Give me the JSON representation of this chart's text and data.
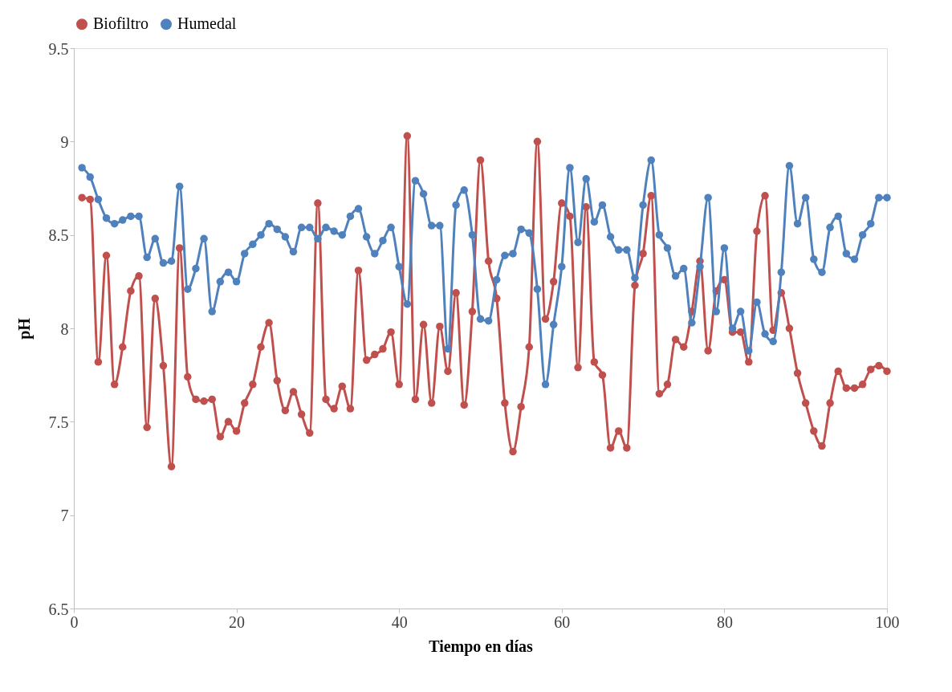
{
  "chart_data": {
    "type": "line",
    "xlabel": "Tiempo en días",
    "ylabel": "pH",
    "x": [
      1,
      2,
      3,
      4,
      5,
      6,
      7,
      8,
      9,
      10,
      11,
      12,
      13,
      14,
      15,
      16,
      17,
      18,
      19,
      20,
      21,
      22,
      23,
      24,
      25,
      26,
      27,
      28,
      29,
      30,
      31,
      32,
      33,
      34,
      35,
      36,
      37,
      38,
      39,
      40,
      41,
      42,
      43,
      44,
      45,
      46,
      47,
      48,
      49,
      50,
      51,
      52,
      53,
      54,
      55,
      56,
      57,
      58,
      59,
      60,
      61,
      62,
      63,
      64,
      65,
      66,
      67,
      68,
      69,
      70,
      71,
      72,
      73,
      74,
      75,
      76,
      77,
      78,
      79,
      80,
      81,
      82,
      83,
      84,
      85,
      86,
      87,
      88,
      89,
      90,
      91,
      92,
      93,
      94,
      95,
      96,
      97,
      98,
      99,
      100
    ],
    "series": [
      {
        "name": "Biofiltro",
        "color": "#c0504d",
        "values": [
          8.7,
          8.69,
          7.82,
          8.39,
          7.7,
          7.9,
          8.2,
          8.28,
          7.47,
          8.16,
          7.8,
          7.26,
          8.43,
          7.74,
          7.62,
          7.61,
          7.62,
          7.42,
          7.5,
          7.45,
          7.6,
          7.7,
          7.9,
          8.03,
          7.72,
          7.56,
          7.66,
          7.54,
          7.44,
          8.67,
          7.62,
          7.57,
          7.69,
          7.57,
          8.31,
          7.83,
          7.86,
          7.89,
          7.98,
          7.7,
          9.03,
          7.62,
          8.02,
          7.6,
          8.01,
          7.77,
          8.19,
          7.59,
          8.09,
          8.9,
          8.36,
          8.16,
          7.6,
          7.34,
          7.58,
          7.9,
          9.0,
          8.05,
          8.25,
          8.67,
          8.6,
          7.79,
          8.65,
          7.82,
          7.75,
          7.36,
          7.45,
          7.36,
          8.23,
          8.4,
          8.71,
          7.65,
          7.7,
          7.94,
          7.9,
          8.09,
          8.36,
          7.88,
          8.2,
          8.26,
          7.98,
          7.98,
          7.82,
          8.52,
          8.71,
          7.99,
          8.19,
          8.0,
          7.76,
          7.6,
          7.45,
          7.37,
          7.6,
          7.77,
          7.68,
          7.68,
          7.7,
          7.78,
          7.8,
          7.77
        ]
      },
      {
        "name": "Humedal",
        "color": "#4f81bd",
        "values": [
          8.86,
          8.81,
          8.69,
          8.59,
          8.56,
          8.58,
          8.6,
          8.6,
          8.38,
          8.48,
          8.35,
          8.36,
          8.76,
          8.21,
          8.32,
          8.48,
          8.09,
          8.25,
          8.3,
          8.25,
          8.4,
          8.45,
          8.5,
          8.56,
          8.53,
          8.49,
          8.41,
          8.54,
          8.54,
          8.48,
          8.54,
          8.52,
          8.5,
          8.6,
          8.64,
          8.49,
          8.4,
          8.47,
          8.54,
          8.33,
          8.13,
          8.79,
          8.72,
          8.55,
          8.55,
          7.89,
          8.66,
          8.74,
          8.5,
          8.05,
          8.04,
          8.26,
          8.39,
          8.4,
          8.53,
          8.51,
          8.21,
          7.7,
          8.02,
          8.33,
          8.86,
          8.46,
          8.8,
          8.57,
          8.66,
          8.49,
          8.42,
          8.42,
          8.27,
          8.66,
          8.9,
          8.5,
          8.43,
          8.28,
          8.32,
          8.03,
          8.33,
          8.7,
          8.09,
          8.43,
          8.0,
          8.09,
          7.88,
          8.14,
          7.97,
          7.93,
          8.3,
          8.87,
          8.56,
          8.7,
          8.37,
          8.3,
          8.54,
          8.6,
          8.4,
          8.37,
          8.5,
          8.56,
          8.7,
          8.7
        ]
      }
    ],
    "xlim": [
      0,
      100
    ],
    "xticks": [
      0,
      20,
      40,
      60,
      80,
      100
    ],
    "ylim": [
      6.5,
      9.5
    ],
    "yticks": [
      6.5,
      7,
      7.5,
      8,
      8.5,
      9,
      9.5
    ],
    "grid": false,
    "legend": "top",
    "marker": "circle",
    "line_style": "solid"
  }
}
